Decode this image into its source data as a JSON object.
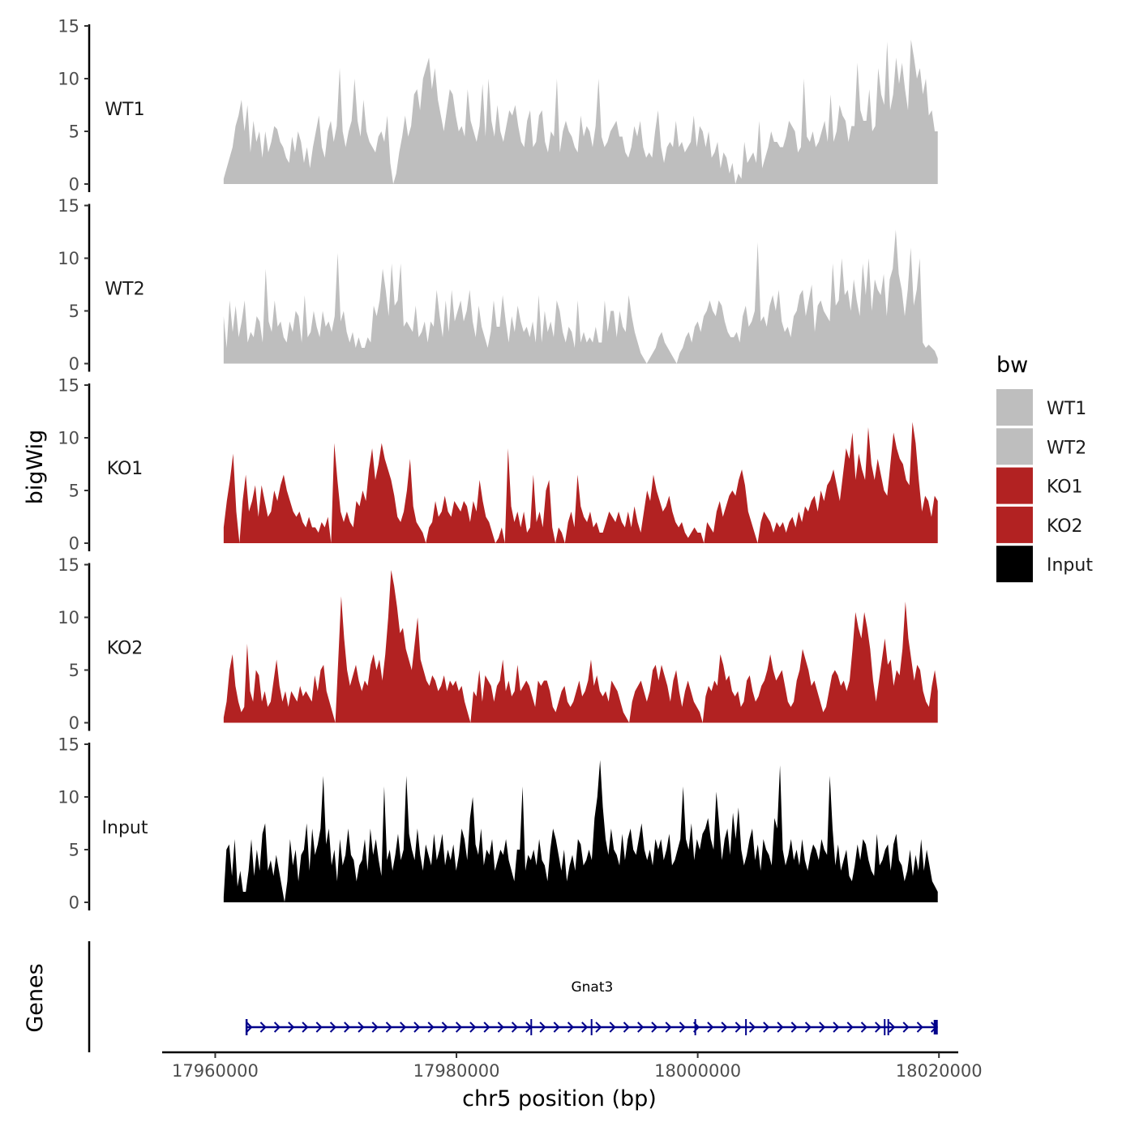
{
  "chart_data": {
    "type": "area",
    "title": "",
    "ylabel": "bigWig",
    "xlabel": "chr5 position (bp)",
    "ylim": [
      0,
      15
    ],
    "y_ticks": [
      "0",
      "5",
      "10",
      "15"
    ],
    "x_ticks": [
      {
        "value": 17960000,
        "label": "17960000"
      },
      {
        "value": 17980000,
        "label": "17980000"
      },
      {
        "value": 18000000,
        "label": "18000000"
      },
      {
        "value": 18020000,
        "label": "18020000"
      }
    ],
    "x_range": [
      17955600,
      18021600
    ],
    "signal_range": [
      17960700,
      18019900
    ],
    "series": [
      {
        "name": "WT1",
        "color": "#bebebe",
        "values": [
          0.5,
          1.5,
          2.5,
          3.5,
          5.5,
          6.5,
          8,
          5,
          7.5,
          3,
          6,
          4,
          5,
          2.5,
          5,
          3,
          4,
          5.5,
          5.2,
          4,
          3.5,
          2.5,
          2,
          4.5,
          3,
          5,
          4,
          2,
          3.5,
          1.5,
          3.5,
          5,
          6.5,
          3.5,
          2.5,
          5,
          6,
          4,
          5.5,
          11,
          5,
          3.5,
          5,
          6,
          10,
          6,
          4.5,
          8,
          5,
          4,
          3.5,
          3,
          4.5,
          5,
          4,
          6.5,
          2,
          0,
          1,
          3,
          4.5,
          6.5,
          4.5,
          5.5,
          8.5,
          9,
          7,
          10,
          11,
          12,
          9,
          11,
          8,
          6.5,
          5,
          7,
          9,
          8.5,
          6.5,
          5,
          5.5,
          4.5,
          9,
          6,
          5,
          4,
          5.5,
          9.5,
          4.5,
          10,
          6,
          4.5,
          7.5,
          5,
          4,
          5.5,
          7,
          6.5,
          7.5,
          5.5,
          4,
          3.5,
          6,
          7,
          3.5,
          4,
          6.5,
          7,
          4,
          3,
          5,
          4.5,
          10,
          3,
          5,
          6,
          5,
          4.5,
          3.5,
          3,
          6.5,
          4.5,
          5.5,
          5,
          3.5,
          5.5,
          10,
          4.5,
          3.5,
          4,
          5,
          5.5,
          6,
          4.5,
          4.5,
          3,
          2.5,
          3.5,
          5.5,
          4.5,
          6,
          3.5,
          2.5,
          3,
          2.5,
          5,
          7,
          3.5,
          2,
          3.5,
          4,
          3.5,
          6,
          3.5,
          4,
          3,
          3.5,
          4,
          6.5,
          3.5,
          5.5,
          5,
          3.5,
          5,
          2.5,
          3,
          4,
          1.5,
          3,
          2.5,
          1,
          2,
          0,
          1,
          0.5,
          4,
          2,
          2.5,
          3,
          2,
          6,
          1.5,
          2.5,
          3.5,
          5,
          4,
          4,
          3.5,
          3.5,
          4.5,
          6,
          5.5,
          5,
          3,
          3.5,
          10,
          4.5,
          4,
          5,
          3.5,
          4,
          5,
          6,
          4,
          8.5,
          4,
          5,
          7.5,
          6.5,
          6,
          4,
          5.5,
          5.5,
          11.5,
          7,
          6,
          6,
          9,
          5,
          5.5,
          11,
          8.5,
          7.5,
          13.5,
          7,
          8.5,
          12,
          9.5,
          11.5,
          9,
          7,
          13.7,
          12,
          10,
          11,
          8.5,
          10,
          6.5,
          7,
          5,
          5
        ]
      },
      {
        "name": "WT2",
        "color": "#bebebe",
        "values": [
          4.5,
          1.5,
          6,
          3,
          5.5,
          2.5,
          4,
          6,
          2,
          3,
          2.5,
          4.5,
          4,
          2,
          9,
          4,
          3,
          6,
          3.5,
          4,
          2.5,
          2,
          4,
          3,
          5,
          4.5,
          2,
          6.5,
          2.5,
          3,
          5,
          3.5,
          2.5,
          5,
          3.5,
          4,
          3,
          4.5,
          10.5,
          4,
          5,
          3,
          2,
          3,
          1.5,
          2.5,
          1.5,
          1.5,
          2.5,
          2,
          5.5,
          4.5,
          6,
          9,
          7,
          4.5,
          9.5,
          5.5,
          6,
          9.5,
          3.5,
          4,
          3.5,
          3,
          5.5,
          2.5,
          3,
          4,
          2,
          4,
          3.5,
          7,
          4.5,
          2.5,
          6,
          3,
          7,
          4,
          5,
          6,
          4,
          5,
          7,
          4,
          2.5,
          5.5,
          3.5,
          2.5,
          1.5,
          3,
          6,
          3.5,
          3.5,
          6.5,
          4,
          2,
          4.5,
          3,
          5.5,
          4,
          3,
          3.5,
          2.5,
          4,
          2,
          6.5,
          2,
          5,
          3,
          4,
          2.5,
          6,
          5,
          3,
          2,
          3.5,
          3,
          1.5,
          6,
          2,
          3,
          2,
          2.5,
          2,
          3.5,
          2,
          2,
          6,
          3,
          5,
          5,
          2.5,
          5,
          3.5,
          3,
          6.5,
          4.5,
          3,
          2,
          1,
          0.5,
          0,
          0.5,
          1,
          1.5,
          2.5,
          3,
          2,
          1.5,
          1,
          0.5,
          0,
          1,
          1.5,
          2.5,
          3,
          2,
          3.5,
          4,
          3,
          4.5,
          5,
          6,
          5,
          4.5,
          6,
          5.5,
          4,
          3,
          2.5,
          2.5,
          3,
          2,
          4.5,
          5.5,
          3.5,
          4,
          5,
          11.5,
          4,
          4.5,
          3.5,
          5.5,
          6.5,
          5,
          7,
          4,
          3,
          3.5,
          2.5,
          4.5,
          5,
          6.5,
          7,
          4.5,
          6,
          7.5,
          3,
          5.5,
          6,
          5,
          4.5,
          4,
          9.5,
          5.5,
          6,
          10,
          6.5,
          7,
          5,
          8,
          6,
          4.5,
          9.5,
          6.5,
          10,
          5,
          8,
          7,
          6.5,
          8.5,
          4.5,
          8,
          9,
          12.7,
          8.5,
          7,
          4.5,
          7,
          11,
          5.5,
          7,
          10,
          2,
          1.5,
          1.8,
          1.5,
          1.2,
          0.5
        ]
      },
      {
        "name": "KO1",
        "color": "#b22222",
        "values": [
          1.5,
          4,
          6,
          8.5,
          3,
          0,
          4,
          6.5,
          3,
          4,
          5.5,
          2.5,
          5.5,
          4,
          2.5,
          3,
          5,
          4,
          5.5,
          6.5,
          5,
          4,
          3,
          2.5,
          3,
          2,
          1.5,
          2.5,
          1.5,
          1.5,
          1,
          2,
          1.5,
          2.5,
          0,
          9.5,
          6,
          3,
          2,
          3,
          2,
          1.5,
          4,
          3.5,
          5,
          4,
          7,
          9,
          6,
          7.5,
          9.5,
          8,
          7,
          6,
          4.5,
          2.5,
          2,
          3,
          5,
          8,
          3.5,
          2,
          1.5,
          1,
          0,
          1.5,
          2,
          4,
          2.5,
          3,
          4.5,
          3,
          2.5,
          4,
          3.5,
          3,
          4,
          3.5,
          2,
          4,
          3,
          6,
          4,
          2.5,
          2,
          1,
          0,
          0.5,
          1.5,
          0,
          9,
          3.5,
          2,
          3,
          1.5,
          3,
          1,
          1.5,
          6.5,
          2,
          3,
          1.5,
          5,
          6,
          1.5,
          0,
          1.5,
          1,
          0,
          2,
          3,
          1.5,
          6.5,
          3.5,
          2.5,
          2,
          3,
          1.5,
          2,
          1,
          1,
          2,
          3,
          2.5,
          2,
          3,
          2,
          1.5,
          3,
          1.5,
          3.5,
          2,
          1,
          3,
          5,
          4,
          6.5,
          5,
          4,
          3,
          3.5,
          4.5,
          3,
          2,
          1.5,
          2,
          1,
          0.5,
          1,
          1.5,
          1,
          1,
          0,
          2,
          1.5,
          1,
          3,
          4,
          2.5,
          3.5,
          4.5,
          5,
          4.5,
          6,
          7,
          5.5,
          3,
          2,
          1,
          0,
          2,
          3,
          2.5,
          2,
          1,
          2,
          1.5,
          2,
          1,
          2,
          2.5,
          1.5,
          3,
          2,
          3.5,
          3,
          4,
          4.5,
          3,
          5,
          4,
          5.5,
          6,
          7,
          5.5,
          4,
          6.5,
          9,
          8,
          10.5,
          6,
          8.5,
          7,
          6,
          11,
          7.5,
          6,
          8,
          6.5,
          5,
          4.5,
          7.5,
          10.5,
          9,
          8,
          7.5,
          6,
          5.5,
          11.5,
          9.5,
          6,
          3,
          4.5,
          4,
          2.5,
          4.5,
          4
        ]
      },
      {
        "name": "KO2",
        "color": "#b22222",
        "values": [
          0.5,
          2,
          5,
          6.5,
          3.5,
          2,
          1,
          1.5,
          7.5,
          3,
          2,
          5,
          4.5,
          2,
          3,
          1.5,
          2,
          4,
          6,
          3.5,
          2,
          3,
          1.5,
          3,
          2.5,
          2,
          3.5,
          2.5,
          3,
          2.5,
          2,
          4.5,
          3,
          5,
          5.5,
          3,
          2,
          1,
          0,
          6,
          12,
          8,
          5,
          3.5,
          4.5,
          5.5,
          4,
          3,
          4,
          3.5,
          5.5,
          6.5,
          5,
          6,
          4,
          6.5,
          10,
          14.5,
          13,
          11,
          8.5,
          9,
          7,
          6,
          5,
          7.5,
          10,
          6,
          5,
          4,
          3.5,
          4.5,
          4,
          3,
          3.5,
          4.5,
          3,
          4,
          3.5,
          4,
          3,
          3.5,
          2,
          1,
          0,
          3,
          2.5,
          5,
          2,
          4.5,
          4,
          3.5,
          2,
          3.5,
          4,
          6,
          3,
          4,
          2.5,
          3,
          5.5,
          3,
          3.5,
          4,
          3.5,
          2.5,
          1.5,
          4,
          3.5,
          4,
          4,
          3,
          1.5,
          1,
          2,
          3,
          3.5,
          2,
          1.5,
          2,
          3,
          4,
          2.5,
          3,
          4,
          6,
          3.5,
          4.5,
          3,
          2.5,
          3,
          2,
          4,
          3.5,
          3,
          2,
          1,
          0.5,
          0,
          2,
          3,
          3.5,
          4,
          3,
          2,
          3,
          5,
          5.5,
          4,
          5.5,
          4.5,
          3.5,
          2,
          4,
          5,
          3,
          1.5,
          3,
          4,
          3,
          2,
          1.5,
          1,
          0,
          2.5,
          3.5,
          3,
          4,
          3.5,
          6.5,
          5.5,
          4,
          4.5,
          3,
          2.5,
          3,
          1.5,
          2,
          4,
          4.5,
          3,
          2,
          2.5,
          3.5,
          4,
          5,
          6.5,
          5,
          4,
          4.5,
          5,
          3.5,
          2,
          1.5,
          2,
          4,
          5,
          7,
          6,
          5,
          3.5,
          4,
          3,
          2,
          1,
          1.5,
          3,
          4.5,
          5,
          4.5,
          3.5,
          4,
          3,
          4,
          7,
          10.5,
          9,
          8,
          10.5,
          9,
          7,
          4,
          2,
          4,
          6,
          8,
          5.5,
          6,
          3.5,
          5,
          4.5,
          7,
          11.5,
          8,
          6,
          4,
          5.5,
          5,
          3,
          2,
          1.5,
          3.5,
          5,
          3
        ]
      },
      {
        "name": "Input",
        "color": "#000000",
        "values": [
          0.5,
          5,
          5.5,
          2.5,
          6,
          1.5,
          3,
          1,
          1,
          3,
          6,
          2.5,
          5,
          3,
          6.5,
          7.5,
          3,
          4,
          2.5,
          4.5,
          3,
          1.5,
          0,
          2,
          6,
          3.5,
          5,
          2,
          4.5,
          5,
          7.5,
          3,
          7,
          4.5,
          5.5,
          7,
          12,
          5.5,
          7,
          3.5,
          5,
          2,
          6,
          3.5,
          4.5,
          7,
          4.5,
          4,
          2,
          3.5,
          4,
          6,
          3,
          7,
          4.5,
          6,
          4,
          2.5,
          11,
          4,
          5,
          3,
          4.5,
          6.5,
          4,
          5,
          12,
          6.5,
          5,
          4,
          7,
          4.5,
          3,
          5.5,
          4.5,
          3.5,
          6.5,
          4,
          5,
          6.5,
          3.5,
          5,
          4,
          5.5,
          3,
          4.5,
          7,
          6,
          4,
          8,
          10,
          5.5,
          4.5,
          7,
          3.5,
          5,
          4.5,
          6,
          3,
          4,
          5,
          4.5,
          6,
          4,
          3,
          2,
          5,
          5,
          11,
          3,
          4.5,
          4,
          5,
          3.5,
          6,
          4,
          3.5,
          2,
          5,
          7,
          6,
          4.5,
          3,
          5,
          2,
          3.5,
          4.5,
          3,
          6,
          5.5,
          3.5,
          4,
          5,
          4,
          8,
          10,
          13.5,
          9,
          6,
          4.5,
          7,
          5,
          4.5,
          3.5,
          6.5,
          4,
          6,
          7,
          5,
          4.5,
          6,
          7.5,
          5,
          4,
          5,
          3.5,
          6,
          5,
          6,
          4,
          5,
          6.5,
          3.5,
          4,
          5,
          6,
          11,
          6,
          5,
          7.5,
          4,
          6,
          5,
          6.5,
          7,
          8,
          6,
          5,
          10.5,
          7.5,
          4,
          6,
          7,
          4.5,
          8.5,
          6,
          9,
          5,
          3.5,
          4.5,
          6,
          7,
          4,
          5.5,
          3,
          6,
          5,
          4.5,
          3.5,
          8,
          7,
          13,
          5,
          3.5,
          4.5,
          6,
          4,
          5,
          3.5,
          6,
          4,
          3,
          4.5,
          5.5,
          5,
          4,
          6,
          5,
          4.5,
          12,
          7,
          3.5,
          5.5,
          3,
          4,
          5,
          2.5,
          2,
          3.5,
          5.5,
          4,
          6,
          5.5,
          4,
          3,
          2.5,
          6.5,
          3.5,
          4,
          5,
          5.5,
          3,
          5.5,
          6.5,
          4,
          3.5,
          2,
          3,
          5,
          2.5,
          4.5,
          3,
          6,
          3,
          5,
          3.5,
          2,
          1.5,
          1
        ]
      }
    ],
    "genes_label": "Genes",
    "gene": {
      "name": "Gnat3",
      "start": 17962600,
      "end": 18019900,
      "strand": "+",
      "color": "#00008b",
      "exons": [
        17986200,
        17991200,
        17999800,
        18004000,
        18015500,
        18015800
      ]
    },
    "legend": {
      "title": "bw",
      "position": "right",
      "items": [
        {
          "label": "WT1",
          "color": "#bebebe"
        },
        {
          "label": "WT2",
          "color": "#bebebe"
        },
        {
          "label": "KO1",
          "color": "#b22222"
        },
        {
          "label": "KO2",
          "color": "#b22222"
        },
        {
          "label": "Input",
          "color": "#000000"
        }
      ]
    }
  }
}
